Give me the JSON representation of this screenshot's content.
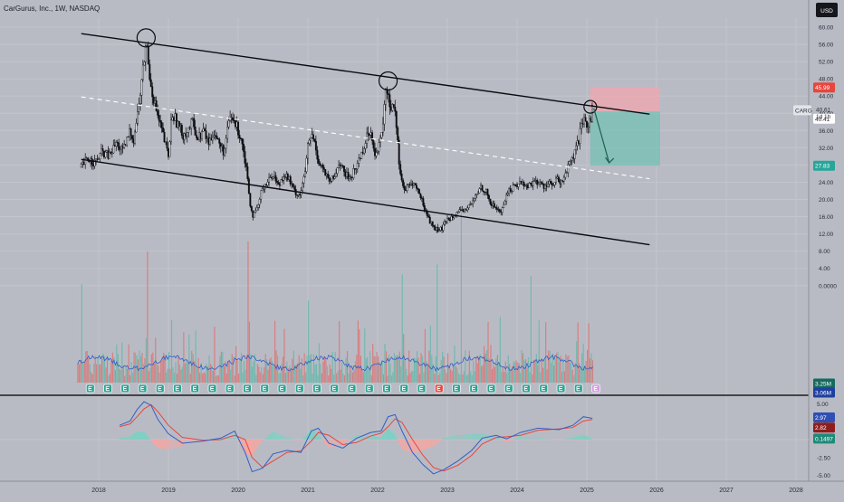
{
  "header": {
    "title": "CarGurus, Inc., 1W, NASDAQ",
    "currency_button": "USD"
  },
  "chart_data": [
    {
      "type": "candlestick",
      "title": "CarGurus, Inc., 1W, NASDAQ",
      "symbol": "CARG",
      "currency": "USD",
      "x_ticks": [
        "2018",
        "2019",
        "2020",
        "2021",
        "2022",
        "2023",
        "2024",
        "2025",
        "2026",
        "2027",
        "2028"
      ],
      "y_ticks": [
        "60.00",
        "56.00",
        "52.00",
        "48.00",
        "44.00",
        "40.00",
        "36.00",
        "32.00",
        "28.00",
        "24.00",
        "20.00",
        "16.00",
        "12.00",
        "8.00",
        "4.00",
        "0.0000"
      ],
      "ylim": [
        0,
        62
      ],
      "price_path": [
        [
          2017.75,
          27.5
        ],
        [
          2017.85,
          29.5
        ],
        [
          2017.95,
          28.5
        ],
        [
          2018.05,
          31
        ],
        [
          2018.15,
          30
        ],
        [
          2018.25,
          33
        ],
        [
          2018.35,
          31
        ],
        [
          2018.45,
          36
        ],
        [
          2018.5,
          34
        ],
        [
          2018.55,
          39
        ],
        [
          2018.6,
          45
        ],
        [
          2018.65,
          52
        ],
        [
          2018.68,
          57
        ],
        [
          2018.72,
          50
        ],
        [
          2018.78,
          44
        ],
        [
          2018.85,
          39
        ],
        [
          2018.92,
          35
        ],
        [
          2019.0,
          30
        ],
        [
          2019.05,
          40
        ],
        [
          2019.12,
          38
        ],
        [
          2019.2,
          35
        ],
        [
          2019.28,
          36
        ],
        [
          2019.35,
          38
        ],
        [
          2019.42,
          34
        ],
        [
          2019.5,
          36
        ],
        [
          2019.58,
          33
        ],
        [
          2019.65,
          36
        ],
        [
          2019.72,
          33
        ],
        [
          2019.8,
          31
        ],
        [
          2019.88,
          39
        ],
        [
          2019.95,
          38
        ],
        [
          2020.05,
          34
        ],
        [
          2020.12,
          27
        ],
        [
          2020.18,
          18
        ],
        [
          2020.22,
          16
        ],
        [
          2020.28,
          18
        ],
        [
          2020.35,
          23
        ],
        [
          2020.42,
          24
        ],
        [
          2020.5,
          26
        ],
        [
          2020.58,
          23
        ],
        [
          2020.65,
          26
        ],
        [
          2020.72,
          25
        ],
        [
          2020.8,
          22
        ],
        [
          2020.88,
          21
        ],
        [
          2020.95,
          25
        ],
        [
          2021.0,
          32
        ],
        [
          2021.05,
          35
        ],
        [
          2021.1,
          33
        ],
        [
          2021.15,
          29
        ],
        [
          2021.22,
          27
        ],
        [
          2021.3,
          24
        ],
        [
          2021.38,
          25
        ],
        [
          2021.45,
          29
        ],
        [
          2021.52,
          26
        ],
        [
          2021.6,
          25
        ],
        [
          2021.68,
          27
        ],
        [
          2021.75,
          30
        ],
        [
          2021.82,
          33
        ],
        [
          2021.88,
          36
        ],
        [
          2021.92,
          35
        ],
        [
          2021.96,
          31
        ],
        [
          2022.0,
          31
        ],
        [
          2022.06,
          35
        ],
        [
          2022.1,
          43
        ],
        [
          2022.14,
          46
        ],
        [
          2022.18,
          41
        ],
        [
          2022.22,
          43
        ],
        [
          2022.26,
          40
        ],
        [
          2022.3,
          30
        ],
        [
          2022.34,
          25
        ],
        [
          2022.38,
          22
        ],
        [
          2022.45,
          23
        ],
        [
          2022.5,
          24
        ],
        [
          2022.58,
          22
        ],
        [
          2022.65,
          19
        ],
        [
          2022.72,
          16
        ],
        [
          2022.78,
          14
        ],
        [
          2022.85,
          13
        ],
        [
          2022.92,
          13
        ],
        [
          2022.98,
          15
        ],
        [
          2023.05,
          16
        ],
        [
          2023.12,
          17
        ],
        [
          2023.2,
          17
        ],
        [
          2023.28,
          18
        ],
        [
          2023.35,
          19
        ],
        [
          2023.42,
          21
        ],
        [
          2023.48,
          23
        ],
        [
          2023.55,
          22
        ],
        [
          2023.62,
          19
        ],
        [
          2023.7,
          18
        ],
        [
          2023.78,
          17
        ],
        [
          2023.82,
          20
        ],
        [
          2023.88,
          22
        ],
        [
          2023.95,
          23
        ],
        [
          2024.05,
          24
        ],
        [
          2024.15,
          23
        ],
        [
          2024.22,
          24
        ],
        [
          2024.3,
          24
        ],
        [
          2024.38,
          23
        ],
        [
          2024.45,
          24
        ],
        [
          2024.52,
          23
        ],
        [
          2024.58,
          25
        ],
        [
          2024.62,
          23
        ],
        [
          2024.66,
          25
        ],
        [
          2024.72,
          27
        ],
        [
          2024.78,
          29
        ],
        [
          2024.84,
          31
        ],
        [
          2024.9,
          35
        ],
        [
          2024.95,
          38
        ],
        [
          2025.0,
          37
        ],
        [
          2025.05,
          39
        ],
        [
          2025.08,
          41
        ]
      ],
      "volume_spikes": [
        [
          2022.85,
          7.2
        ],
        [
          2023.2,
          10.5
        ],
        [
          2020.15,
          8.6
        ],
        [
          2018.7,
          8.0
        ],
        [
          2022.35,
          6.6
        ],
        [
          2024.2,
          6.5
        ],
        [
          2017.75,
          6.0
        ],
        [
          2021.0,
          5.0
        ],
        [
          2019.05,
          3.8
        ],
        [
          2023.75,
          4.0
        ]
      ],
      "volume_ma_last": "3.06M",
      "annotations": {
        "upper_channel": [
          [
            2017.75,
            58.5
          ],
          [
            2025.9,
            39.8
          ]
        ],
        "lower_channel": [
          [
            2017.75,
            29.3
          ],
          [
            2025.9,
            9.5
          ]
        ],
        "midline_dashed": [
          [
            2017.75,
            43.8
          ],
          [
            2025.9,
            24.8
          ]
        ],
        "circles_at": [
          [
            2018.68,
            57.5
          ],
          [
            2022.15,
            47.5
          ],
          [
            2025.05,
            41.5
          ]
        ],
        "projection_arrow": [
          [
            2025.1,
            41.2
          ],
          [
            2025.32,
            28.5
          ]
        ],
        "short_position": {
          "x_from": 2025.05,
          "x_to": 2026.05,
          "stop": 45.99,
          "entry": 40.41,
          "target": 27.83
        }
      },
      "price_labels": {
        "stop": "45.99",
        "symbol": "CARG",
        "last": "40.61",
        "countdown": "1d 1h",
        "entry": "40.41",
        "target": "27.83",
        "volume": "3.25M",
        "volume_ma": "3.06M"
      },
      "colors": {
        "up": "#26a69a",
        "down": "#ef5350",
        "stop_zone": "#f2a6ad",
        "target_zone": "#6fc1b4",
        "line": "#0b0b10"
      }
    },
    {
      "type": "line",
      "name": "MACD",
      "y_ticks": [
        "5.00",
        "2.50",
        "0.00",
        "-2.50",
        "-5.00"
      ],
      "ylim": [
        -6,
        6
      ],
      "macd": [
        [
          2018.3,
          2.0
        ],
        [
          2018.45,
          2.6
        ],
        [
          2018.55,
          4.2
        ],
        [
          2018.65,
          5.3
        ],
        [
          2018.75,
          4.8
        ],
        [
          2018.85,
          2.8
        ],
        [
          2019.0,
          0.8
        ],
        [
          2019.2,
          -0.5
        ],
        [
          2019.5,
          -0.2
        ],
        [
          2019.75,
          0.2
        ],
        [
          2019.95,
          1.2
        ],
        [
          2020.1,
          -1.8
        ],
        [
          2020.2,
          -4.5
        ],
        [
          2020.35,
          -4.0
        ],
        [
          2020.5,
          -2.0
        ],
        [
          2020.7,
          -1.5
        ],
        [
          2020.9,
          -1.8
        ],
        [
          2021.05,
          1.2
        ],
        [
          2021.15,
          1.6
        ],
        [
          2021.3,
          -0.5
        ],
        [
          2021.5,
          -1.2
        ],
        [
          2021.7,
          0.2
        ],
        [
          2021.9,
          1.0
        ],
        [
          2022.05,
          1.2
        ],
        [
          2022.15,
          3.2
        ],
        [
          2022.25,
          3.5
        ],
        [
          2022.35,
          1.2
        ],
        [
          2022.5,
          -1.8
        ],
        [
          2022.65,
          -3.5
        ],
        [
          2022.8,
          -4.8
        ],
        [
          2022.95,
          -4.2
        ],
        [
          2023.15,
          -3.0
        ],
        [
          2023.35,
          -1.5
        ],
        [
          2023.5,
          0.2
        ],
        [
          2023.7,
          0.6
        ],
        [
          2023.85,
          0.1
        ],
        [
          2024.05,
          1.0
        ],
        [
          2024.3,
          1.6
        ],
        [
          2024.6,
          1.4
        ],
        [
          2024.8,
          2.0
        ],
        [
          2024.95,
          3.2
        ],
        [
          2025.08,
          2.97
        ]
      ],
      "signal": [
        [
          2018.3,
          1.8
        ],
        [
          2018.45,
          2.2
        ],
        [
          2018.55,
          3.2
        ],
        [
          2018.65,
          4.3
        ],
        [
          2018.75,
          4.9
        ],
        [
          2018.85,
          3.9
        ],
        [
          2019.0,
          2.0
        ],
        [
          2019.2,
          0.3
        ],
        [
          2019.5,
          -0.1
        ],
        [
          2019.75,
          0.0
        ],
        [
          2019.95,
          0.6
        ],
        [
          2020.1,
          0.0
        ],
        [
          2020.2,
          -2.5
        ],
        [
          2020.35,
          -3.9
        ],
        [
          2020.5,
          -3.0
        ],
        [
          2020.7,
          -1.8
        ],
        [
          2020.9,
          -1.6
        ],
        [
          2021.05,
          -0.2
        ],
        [
          2021.15,
          1.0
        ],
        [
          2021.3,
          0.6
        ],
        [
          2021.5,
          -0.7
        ],
        [
          2021.7,
          -0.4
        ],
        [
          2021.9,
          0.5
        ],
        [
          2022.05,
          0.9
        ],
        [
          2022.15,
          1.8
        ],
        [
          2022.25,
          2.9
        ],
        [
          2022.35,
          2.4
        ],
        [
          2022.5,
          0.0
        ],
        [
          2022.65,
          -2.2
        ],
        [
          2022.8,
          -3.9
        ],
        [
          2022.95,
          -4.4
        ],
        [
          2023.15,
          -3.6
        ],
        [
          2023.35,
          -2.2
        ],
        [
          2023.5,
          -0.6
        ],
        [
          2023.7,
          0.3
        ],
        [
          2023.85,
          0.4
        ],
        [
          2024.05,
          0.6
        ],
        [
          2024.3,
          1.3
        ],
        [
          2024.6,
          1.5
        ],
        [
          2024.8,
          1.7
        ],
        [
          2024.95,
          2.6
        ],
        [
          2025.08,
          2.82
        ]
      ],
      "histogram_last": "0.1497",
      "labels": {
        "macd": "2.97",
        "signal": "2.82",
        "hist": "0.1497"
      },
      "colors": {
        "macd": "#2f5fc7",
        "signal": "#e8453c",
        "hist_up": "#7fd0c4",
        "hist_down": "#f4a7a3"
      }
    }
  ]
}
